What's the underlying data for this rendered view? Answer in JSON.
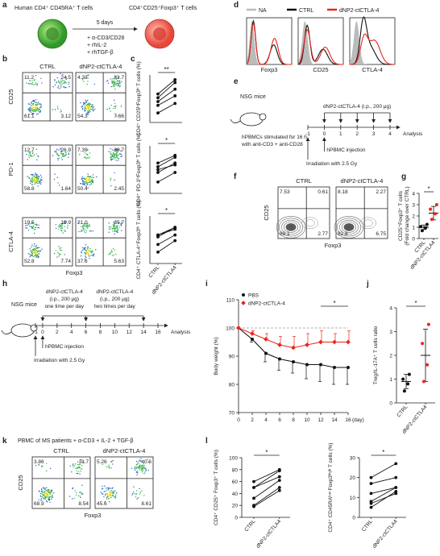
{
  "panel_labels": [
    "a",
    "b",
    "c",
    "d",
    "e",
    "f",
    "g",
    "h",
    "i",
    "j",
    "k",
    "l"
  ],
  "panel_a": {
    "start_cells": "Human CD4⁺ CD45RA⁺ T cells",
    "end_cells": "CD4⁺CD25⁺Foxp3⁺ T cells",
    "duration": "5 days",
    "treatments": [
      "+ α-CD3/CD28",
      "+ rhIL-2",
      "+ rhTGF-β"
    ]
  },
  "panel_e": {
    "mouse": "NSG mice",
    "stimulation": [
      "hPBMCs stimulated for 16 h",
      "with anti-CD3 + anti-CD28"
    ],
    "timeline": [
      -1,
      0,
      1,
      2,
      3,
      4
    ],
    "end": "Analysis",
    "treatment": "dNP2-ctCTLA-4 (i.p., 200 μg)",
    "injection": "hPBMC injection",
    "irradiation": "Irradiation with 2.5 Gy"
  },
  "panel_h": {
    "mouse": "NSG mice",
    "treatments": [
      [
        "dNP2-ctCTLA-4",
        "(i.p., 200 μg)",
        "one time per day"
      ],
      [
        "dNP2-ctCTLA-4",
        "(i.p., 200 μg)",
        "two times per day"
      ]
    ],
    "timeline": [
      -1,
      0,
      2,
      4,
      6,
      8,
      10,
      12,
      14,
      16
    ],
    "end": "Analysis",
    "injection": "hPBMC injection",
    "irradiation": "Irradiation with 2.5 Gy"
  },
  "chart_data": [
    {
      "type": "flow",
      "column_titles": [
        "CTRL",
        "dNP2-ctCTLA-4"
      ],
      "row_labels": [
        "CD25",
        "PD-1",
        "CTLA-4"
      ],
      "xlabel": "Foxp3",
      "rows": [
        [
          {
            "values": [
              11.2,
              24.5,
              61.1,
              3.12
            ]
          },
          {
            "values": [
              4.33,
              33.7,
              54.3,
              7.66
            ]
          }
        ],
        [
          {
            "values": [
              12.7,
              26.9,
              58.8,
              1.64
            ]
          },
          {
            "values": [
              7.39,
              39.7,
              50.4,
              2.45
            ]
          }
        ],
        [
          {
            "values": [
              19.5,
              19.9,
              52.8,
              7.74
            ]
          },
          {
            "values": [
              21.0,
              35.7,
              37.6,
              5.63
            ],
            "value_labels": [
              "21.0",
              "35.7",
              "37.6",
              "5.63"
            ]
          }
        ]
      ]
    },
    {
      "type": "paired",
      "ylabel": [
        "CD4⁺ CD25ʰⁱFoxp3ʰⁱ T cells (%)"
      ],
      "significance": "**",
      "ylim": [
        0,
        50
      ],
      "pairs": [
        [
          30,
          45
        ],
        [
          26,
          42
        ],
        [
          22,
          35
        ],
        [
          18,
          28
        ],
        [
          10,
          20
        ]
      ]
    },
    {
      "type": "paired",
      "ylabel": [
        "CD4⁺ PD-1ʰⁱFoxp3ʰⁱ T cells (%)"
      ],
      "significance": "*",
      "ylim": [
        0,
        50
      ],
      "pairs": [
        [
          32,
          40
        ],
        [
          28,
          38
        ],
        [
          25,
          30
        ],
        [
          22,
          32
        ],
        [
          12,
          22
        ]
      ]
    },
    {
      "type": "paired",
      "ylabel": [
        "CD4⁺ CTLA-4⁺Foxp3ʰⁱ T cells (%)"
      ],
      "significance": "*",
      "ylim": [
        0,
        50
      ],
      "categories": [
        "CTRL",
        "dNP2-ctCTLA4"
      ],
      "pairs": [
        [
          30,
          38
        ],
        [
          30,
          36
        ],
        [
          28,
          38
        ],
        [
          20,
          30
        ],
        [
          12,
          24
        ]
      ]
    },
    {
      "type": "histogram_overlay",
      "series": [
        {
          "name": "NA",
          "color": "#bbbbbb"
        },
        {
          "name": "CTRL",
          "color": "#111111"
        },
        {
          "name": "dNP2-ctCTLA-4",
          "color": "#e8261f"
        }
      ],
      "xlabels": [
        "Foxp3",
        "CD25",
        "CTLA-4"
      ]
    },
    {
      "type": "flow",
      "style": "contour",
      "column_titles": [
        "CTRL",
        "dNP2-ctCTLA-4"
      ],
      "row_labels": [
        "CD25"
      ],
      "xlabel": "Foxp3",
      "rows": [
        [
          {
            "values": [
              7.53,
              0.61,
              89.1,
              2.77
            ]
          },
          {
            "values": [
              8.18,
              2.27,
              82.8,
              6.75
            ]
          }
        ]
      ]
    },
    {
      "type": "bar_dot",
      "ylabel": [
        "CD25⁺Foxp3⁺ T cells",
        "(Fold change over CTRL)"
      ],
      "categories": [
        "CTRL",
        "dNP2-ctCTLA4"
      ],
      "colors": [
        "#111111",
        "#e8261f"
      ],
      "values": [
        1.0,
        2.25
      ],
      "errors": [
        0.2,
        0.6
      ],
      "points": [
        [
          0.7,
          0.95,
          1.05,
          1.25
        ],
        [
          1.7,
          2.2,
          2.6,
          3.0
        ]
      ],
      "ylim": [
        0,
        4
      ],
      "yticks": [
        0,
        1,
        2,
        3,
        4
      ],
      "significance": "*"
    },
    {
      "type": "line",
      "ylabel": [
        "Body weight (%)"
      ],
      "xlabel": "(day)",
      "x": [
        0,
        2,
        4,
        6,
        8,
        10,
        12,
        14,
        16
      ],
      "xlim": [
        0,
        16
      ],
      "xticks": [
        0,
        2,
        4,
        6,
        8,
        10,
        12,
        14,
        16
      ],
      "ylim": [
        70,
        110
      ],
      "yticks": [
        70,
        80,
        90,
        100,
        110
      ],
      "reference_line": 100,
      "significance": "*",
      "significance_span": [
        12,
        16
      ],
      "legend": "top-left",
      "series": [
        {
          "name": "PBS",
          "color": "#111111",
          "values": [
            100,
            96,
            91,
            89,
            88,
            87,
            87,
            86,
            86
          ],
          "errors": [
            0,
            1,
            3,
            4,
            4,
            5,
            6,
            6,
            6
          ]
        },
        {
          "name": "dNP2-ctCTLA-4",
          "color": "#e8261f",
          "values": [
            100,
            98,
            96,
            94,
            93,
            94,
            95,
            95,
            95
          ],
          "errors": [
            0,
            1,
            2,
            3,
            4,
            4,
            4,
            3,
            4
          ]
        }
      ]
    },
    {
      "type": "bar_dot",
      "ylabel": [
        "Treg/IL-17A⁺ T cells ratio"
      ],
      "categories": [
        "CTRL",
        "dNP2-ctCTLA4"
      ],
      "colors": [
        "#111111",
        "#e8261f"
      ],
      "values": [
        0.9,
        2.0
      ],
      "errors": [
        0.3,
        1.1
      ],
      "points": [
        [
          0.5,
          0.8,
          1.0,
          1.2
        ],
        [
          0.9,
          1.6,
          2.5,
          3.3
        ]
      ],
      "ylim": [
        0,
        4
      ],
      "yticks": [
        0,
        1,
        2,
        3,
        4
      ],
      "significance": "*"
    },
    {
      "type": "flow",
      "title": "PBMC of MS patients + α-CD3 + IL-2 + TGF-β",
      "column_titles": [
        "CTRL",
        "dNP2-ctCTLA-4"
      ],
      "row_labels": [
        "CD25"
      ],
      "xlabel": "Foxp3",
      "rows": [
        [
          {
            "values": [
              3.86,
              18.7,
              68.9,
              8.54
            ]
          },
          {
            "values": [
              5.26,
              40.6,
              45.6,
              8.61
            ]
          }
        ]
      ]
    },
    {
      "type": "paired",
      "ylabel": [
        "CD4⁺ CD25⁺ Foxp3⁺ T cells (%)"
      ],
      "significance": "*",
      "ylim": [
        0,
        100
      ],
      "yticks": [
        0,
        20,
        40,
        60,
        80,
        100
      ],
      "categories": [
        "CTRL",
        "dNP2-ctCTLA4"
      ],
      "pairs": [
        [
          60,
          80
        ],
        [
          50,
          78
        ],
        [
          32,
          62
        ],
        [
          20,
          50
        ],
        [
          18,
          45
        ],
        [
          50,
          68
        ]
      ]
    },
    {
      "type": "paired",
      "ylabel": [
        "CD4⁺ CD45RAˡᵒʷ Foxp3ʰⁱᵍʰ T cells (%)"
      ],
      "significance": "*",
      "ylim": [
        0,
        30
      ],
      "yticks": [
        0,
        10,
        20,
        30
      ],
      "categories": [
        "CTRL",
        "dNP2-ctCTLA4"
      ],
      "pairs": [
        [
          20,
          27
        ],
        [
          17,
          20
        ],
        [
          12,
          15
        ],
        [
          8,
          15
        ],
        [
          7,
          12
        ],
        [
          5,
          13
        ]
      ]
    }
  ]
}
